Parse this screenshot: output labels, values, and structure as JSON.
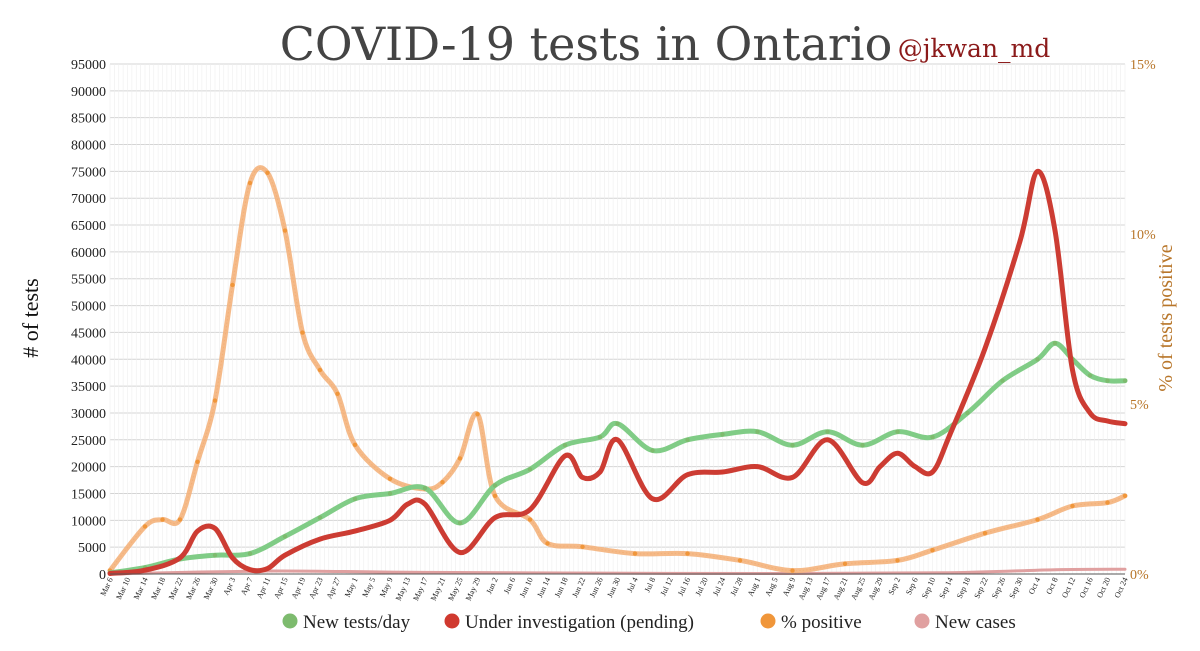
{
  "chart_data": {
    "type": "line",
    "title": "COVID-19 tests in Ontario",
    "subtitle": "@jkwan_md",
    "ylabel": "# of tests",
    "y2label": "% of tests positive",
    "ylim": [
      0,
      95000
    ],
    "y2lim": [
      0,
      15
    ],
    "yticks": [
      "0",
      "5000",
      "10000",
      "15000",
      "20000",
      "25000",
      "30000",
      "35000",
      "40000",
      "45000",
      "50000",
      "55000",
      "60000",
      "65000",
      "70000",
      "75000",
      "80000",
      "85000",
      "90000",
      "95000"
    ],
    "y2ticks": [
      "0%",
      "5%",
      "10%",
      "15%"
    ],
    "xticks": [
      "Mar 6",
      "Mar 10",
      "Mar 14",
      "Mar 18",
      "Mar 22",
      "Mar 26",
      "Mar 30",
      "Apr 3",
      "Apr 7",
      "Apr 11",
      "Apr 15",
      "Apr 19",
      "Apr 23",
      "Apr 27",
      "May 1",
      "May 5",
      "May 9",
      "May 13",
      "May 17",
      "May 21",
      "May 25",
      "May 29",
      "Jun 2",
      "Jun 6",
      "Jun 10",
      "Jun 14",
      "Jun 18",
      "Jun 22",
      "Jun 26",
      "Jun 30",
      "Jul 4",
      "Jul 8",
      "Jul 12",
      "Jul 16",
      "Jul 20",
      "Jul 24",
      "Jul 28",
      "Aug 1",
      "Aug 5",
      "Aug 9",
      "Aug 13",
      "Aug 17",
      "Aug 21",
      "Aug 25",
      "Aug 29",
      "Sep 2",
      "Sep 6",
      "Sep 10",
      "Sep 14",
      "Sep 18",
      "Sep 22",
      "Sep 26",
      "Sep 30",
      "Oct 4",
      "Oct 8",
      "Oct 12",
      "Oct 16",
      "Oct 20",
      "Oct 24"
    ],
    "grid": true,
    "legend_position": "bottom",
    "legend": [
      {
        "label": "New tests/day",
        "color": "#7dbb6e"
      },
      {
        "label": "Under investigation (pending)",
        "color": "#d0392f"
      },
      {
        "label": "% positive",
        "color": "#f0963a"
      },
      {
        "label": "New cases",
        "color": "#e0a0a0"
      }
    ],
    "series": [
      {
        "key": "tests",
        "axis": "left",
        "color": "#7dbb6e",
        "smooth_color": "#80cc86",
        "x": [
          "Mar 6",
          "Mar 14",
          "Mar 22",
          "Mar 30",
          "Apr 7",
          "Apr 15",
          "Apr 23",
          "May 1",
          "May 9",
          "May 17",
          "May 25",
          "Jun 2",
          "Jun 10",
          "Jun 18",
          "Jun 26",
          "Jun 30",
          "Jul 8",
          "Jul 16",
          "Jul 24",
          "Aug 1",
          "Aug 9",
          "Aug 17",
          "Aug 25",
          "Sep 2",
          "Sep 10",
          "Sep 18",
          "Sep 26",
          "Oct 4",
          "Oct 8",
          "Oct 12",
          "Oct 16",
          "Oct 20",
          "Oct 24"
        ],
        "values": [
          200,
          1200,
          2800,
          3500,
          3800,
          7000,
          10500,
          14000,
          15000,
          16000,
          9500,
          16500,
          19500,
          24000,
          25500,
          28000,
          23000,
          25000,
          26000,
          26500,
          24000,
          26500,
          24000,
          26500,
          25500,
          30000,
          36000,
          40000,
          43000,
          40000,
          37000,
          36000,
          36000
        ]
      },
      {
        "key": "pending",
        "axis": "left",
        "color": "#d0392f",
        "smooth_color": "#cc3c33",
        "x": [
          "Mar 6",
          "Mar 14",
          "Mar 22",
          "Mar 26",
          "Mar 30",
          "Apr 3",
          "Apr 7",
          "Apr 11",
          "Apr 15",
          "Apr 23",
          "May 1",
          "May 9",
          "May 13",
          "May 17",
          "May 25",
          "Jun 2",
          "Jun 10",
          "Jun 18",
          "Jun 22",
          "Jun 26",
          "Jun 30",
          "Jul 8",
          "Jul 16",
          "Jul 24",
          "Aug 1",
          "Aug 9",
          "Aug 17",
          "Aug 25",
          "Aug 29",
          "Sep 2",
          "Sep 6",
          "Sep 10",
          "Sep 14",
          "Sep 22",
          "Sep 30",
          "Oct 4",
          "Oct 8",
          "Oct 12",
          "Oct 16",
          "Oct 20",
          "Oct 24"
        ],
        "values": [
          100,
          700,
          3000,
          8000,
          8500,
          3000,
          800,
          1000,
          3500,
          6500,
          8000,
          10000,
          13000,
          13000,
          4000,
          10500,
          12000,
          22000,
          18000,
          19000,
          25000,
          14000,
          18500,
          19000,
          20000,
          18000,
          25000,
          17000,
          20000,
          22500,
          20000,
          19000,
          26000,
          42000,
          62000,
          75000,
          64000,
          38000,
          30000,
          28500,
          28000
        ]
      },
      {
        "key": "pct_positive",
        "axis": "right",
        "color": "#f0963a",
        "smooth_color": "#f4b27c",
        "x": [
          "Mar 6",
          "Mar 14",
          "Mar 18",
          "Mar 22",
          "Mar 26",
          "Mar 30",
          "Apr 3",
          "Apr 7",
          "Apr 11",
          "Apr 15",
          "Apr 19",
          "Apr 23",
          "Apr 27",
          "May 1",
          "May 9",
          "May 17",
          "May 21",
          "May 25",
          "May 29",
          "Jun 2",
          "Jun 10",
          "Jun 14",
          "Jun 22",
          "Jul 4",
          "Jul 16",
          "Jul 28",
          "Aug 9",
          "Aug 21",
          "Sep 2",
          "Sep 10",
          "Sep 22",
          "Oct 4",
          "Oct 12",
          "Oct 20",
          "Oct 24"
        ],
        "values": [
          0.1,
          1.4,
          1.6,
          1.6,
          3.3,
          5.1,
          8.5,
          11.5,
          11.8,
          10.1,
          7.1,
          6.0,
          5.3,
          3.8,
          2.8,
          2.5,
          2.7,
          3.4,
          4.7,
          2.3,
          1.6,
          0.9,
          0.8,
          0.6,
          0.6,
          0.4,
          0.1,
          0.3,
          0.4,
          0.7,
          1.2,
          1.6,
          2.0,
          2.1,
          2.3
        ]
      },
      {
        "key": "new_cases",
        "axis": "left",
        "color": "#e0a0a0",
        "x": [
          "Mar 6",
          "Apr 11",
          "May 9",
          "Jun 10",
          "Aug 9",
          "Sep 14",
          "Oct 8",
          "Oct 24"
        ],
        "values": [
          0,
          550,
          350,
          200,
          100,
          250,
          800,
          900
        ]
      }
    ]
  }
}
